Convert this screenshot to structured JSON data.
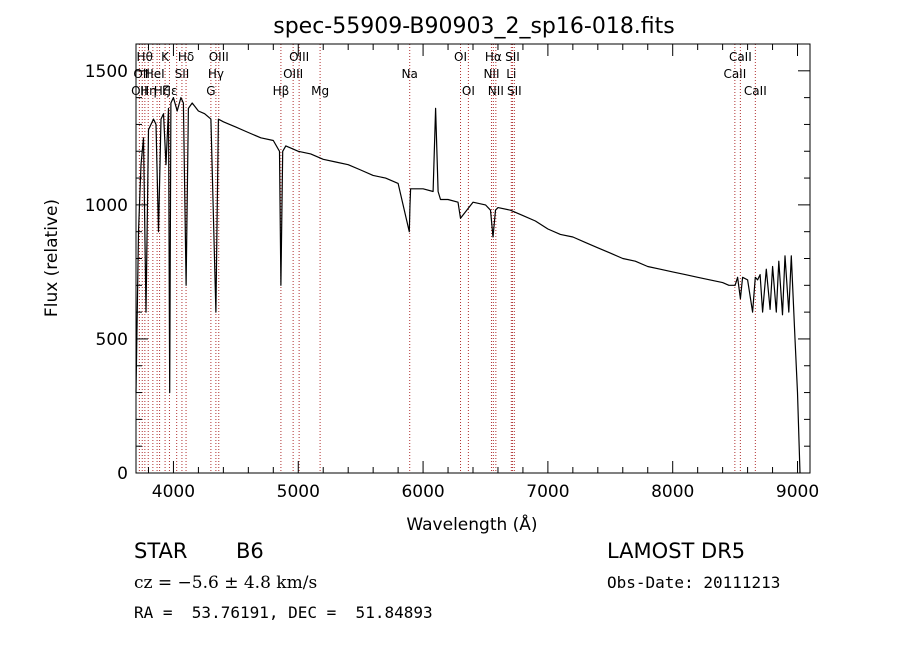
{
  "chart_data": {
    "type": "line",
    "title": "spec-55909-B90903_2_sp16-018.fits",
    "xlabel": "Wavelength (Å)",
    "ylabel": "Flux (relative)",
    "xlim": [
      3700,
      9100
    ],
    "ylim": [
      0,
      1600
    ],
    "xticks": [
      4000,
      5000,
      6000,
      7000,
      8000,
      9000
    ],
    "yticks": [
      0,
      500,
      1000,
      1500
    ],
    "line_color": "#000000",
    "marker_color": "#b03030",
    "series": [
      {
        "x": [
          3700,
          3720,
          3740,
          3760,
          3780,
          3800,
          3820,
          3840,
          3860,
          3880,
          3900,
          3920,
          3940,
          3960,
          3970,
          3980,
          4000,
          4030,
          4060,
          4080,
          4101,
          4120,
          4150,
          4200,
          4250,
          4300,
          4340,
          4360,
          4400,
          4450,
          4500,
          4600,
          4700,
          4800,
          4850,
          4861,
          4875,
          4900,
          4950,
          5000,
          5100,
          5200,
          5300,
          5400,
          5500,
          5600,
          5700,
          5800,
          5890,
          5895,
          5900,
          6000,
          6080,
          6100,
          6120,
          6140,
          6200,
          6280,
          6300,
          6400,
          6500,
          6540,
          6560,
          6580,
          6600,
          6700,
          6800,
          6900,
          7000,
          7100,
          7200,
          7300,
          7400,
          7500,
          7600,
          7700,
          7800,
          7900,
          8000,
          8100,
          8200,
          8300,
          8400,
          8450,
          8500,
          8520,
          8542,
          8560,
          8600,
          8640,
          8662,
          8680,
          8700,
          8720,
          8750,
          8780,
          8800,
          8830,
          8850,
          8880,
          8900,
          8930,
          8950,
          8980,
          9000,
          9020
        ],
        "y": [
          300,
          900,
          1150,
          1250,
          600,
          1280,
          1300,
          1320,
          1300,
          900,
          1320,
          1340,
          1150,
          1360,
          300,
          1380,
          1400,
          1350,
          1400,
          1380,
          700,
          1360,
          1380,
          1350,
          1340,
          1320,
          600,
          1320,
          1310,
          1300,
          1290,
          1270,
          1250,
          1240,
          1200,
          700,
          1200,
          1220,
          1210,
          1200,
          1190,
          1170,
          1160,
          1150,
          1130,
          1110,
          1100,
          1080,
          900,
          1000,
          1060,
          1060,
          1050,
          1360,
          1050,
          1020,
          1020,
          1010,
          950,
          1010,
          1000,
          980,
          880,
          980,
          990,
          980,
          960,
          940,
          910,
          890,
          880,
          860,
          840,
          820,
          800,
          790,
          770,
          760,
          750,
          740,
          730,
          720,
          710,
          700,
          700,
          730,
          650,
          730,
          720,
          600,
          730,
          720,
          740,
          600,
          760,
          610,
          770,
          600,
          790,
          590,
          810,
          600,
          810,
          500,
          300,
          0
        ],
        "values_note": ""
      }
    ],
    "line_markers": [
      {
        "x": 3727,
        "label": "OII",
        "row": 3
      },
      {
        "x": 3750,
        "label": "",
        "row": 0
      },
      {
        "x": 3771,
        "label": "",
        "row": 0
      },
      {
        "x": 3798,
        "label": "",
        "row": 0
      },
      {
        "x": 3835,
        "label": "",
        "row": 0
      },
      {
        "x": 3869,
        "label": "",
        "row": 0
      },
      {
        "x": 3889,
        "label": "",
        "row": 0
      },
      {
        "x": 3933,
        "label": "K",
        "row": 1
      },
      {
        "x": 3968,
        "label": "",
        "row": 0
      },
      {
        "x": 4026,
        "label": "",
        "row": 0
      },
      {
        "x": 4068,
        "label": "SII",
        "row": 2
      },
      {
        "x": 4101,
        "label": "Hδ",
        "row": 1
      },
      {
        "x": 4300,
        "label": "G",
        "row": 3
      },
      {
        "x": 4340,
        "label": "Hγ",
        "row": 2
      },
      {
        "x": 4363,
        "label": "OIII",
        "row": 1
      },
      {
        "x": 4861,
        "label": "Hβ",
        "row": 3
      },
      {
        "x": 4959,
        "label": "OIII",
        "row": 2
      },
      {
        "x": 5007,
        "label": "OIII",
        "row": 1
      },
      {
        "x": 5175,
        "label": "Mg",
        "row": 3
      },
      {
        "x": 5893,
        "label": "Na",
        "row": 2
      },
      {
        "x": 6300,
        "label": "OI",
        "row": 1
      },
      {
        "x": 6363,
        "label": "OI",
        "row": 3
      },
      {
        "x": 6548,
        "label": "NII",
        "row": 2
      },
      {
        "x": 6563,
        "label": "Hα",
        "row": 1
      },
      {
        "x": 6583,
        "label": "NII",
        "row": 3
      },
      {
        "x": 6707,
        "label": "Li",
        "row": 2
      },
      {
        "x": 6716,
        "label": "SII",
        "row": 1
      },
      {
        "x": 6731,
        "label": "SII",
        "row": 3
      },
      {
        "x": 8498,
        "label": "CaII",
        "row": 2
      },
      {
        "x": 8542,
        "label": "CaII",
        "row": 1
      },
      {
        "x": 8662,
        "label": "CaII",
        "row": 3
      }
    ],
    "extra_labels": [
      {
        "x": 3770,
        "label": "Hθ",
        "row": 1
      },
      {
        "x": 3745,
        "label": "OII",
        "row": 2
      },
      {
        "x": 3800,
        "label": "Hη",
        "row": 3
      },
      {
        "x": 3850,
        "label": "HeI",
        "row": 2
      },
      {
        "x": 3970,
        "label": "Hε",
        "row": 3
      },
      {
        "x": 3905,
        "label": "Hζ",
        "row": 3
      }
    ]
  },
  "info": {
    "object_class": "STAR",
    "subclass": "B6",
    "survey": "LAMOST DR5",
    "cz": "cz = −5.6 ± 4.8 km/s",
    "obs_date": "Obs-Date: 20111213",
    "coords": "RA =  53.76191, DEC =  51.84893"
  }
}
